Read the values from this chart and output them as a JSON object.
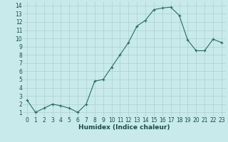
{
  "x": [
    0,
    1,
    2,
    3,
    4,
    5,
    6,
    7,
    8,
    9,
    10,
    11,
    12,
    13,
    14,
    15,
    16,
    17,
    18,
    19,
    20,
    21,
    22,
    23
  ],
  "y": [
    2.5,
    1.0,
    1.5,
    2.0,
    1.8,
    1.5,
    1.0,
    2.0,
    4.8,
    5.0,
    6.5,
    8.0,
    9.5,
    11.5,
    12.2,
    13.5,
    13.7,
    13.8,
    12.8,
    9.8,
    8.5,
    8.5,
    9.9,
    9.5
  ],
  "line_color": "#2a6b5e",
  "marker": "+",
  "marker_size": 3,
  "linewidth": 0.8,
  "bg_color": "#c8eaea",
  "grid_color": "#a8c8c8",
  "xlabel": "Humidex (Indice chaleur)",
  "xlim": [
    -0.5,
    23.5
  ],
  "ylim": [
    0.5,
    14.5
  ],
  "yticks": [
    1,
    2,
    3,
    4,
    5,
    6,
    7,
    8,
    9,
    10,
    11,
    12,
    13,
    14
  ],
  "xticks": [
    0,
    1,
    2,
    3,
    4,
    5,
    6,
    7,
    8,
    9,
    10,
    11,
    12,
    13,
    14,
    15,
    16,
    17,
    18,
    19,
    20,
    21,
    22,
    23
  ],
  "xlabel_fontsize": 6.5,
  "tick_fontsize": 5.5,
  "axis_label_color": "#1a4a4a",
  "markeredgewidth": 0.8
}
